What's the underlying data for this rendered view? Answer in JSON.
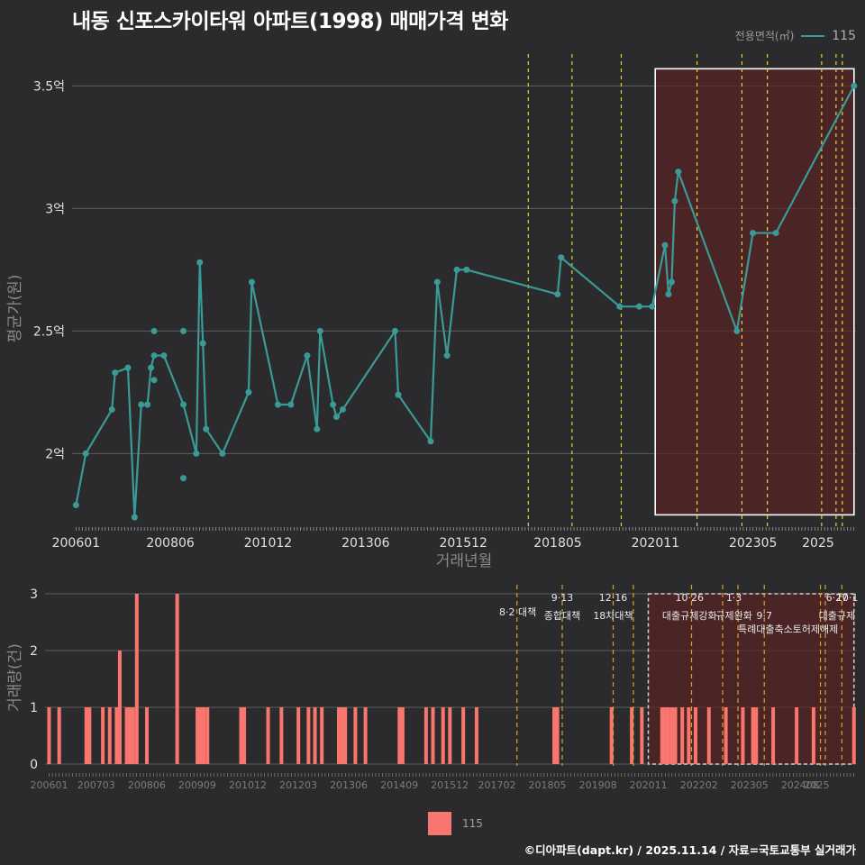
{
  "title": "내동 신포스카이타워 아파트(1998) 매매가격 변화",
  "legend_top": {
    "title": "전용면적(㎡)",
    "value": "115"
  },
  "legend_bottom": {
    "value": "115"
  },
  "footer": "©디아파트(dapt.kr) / 2025.11.14 / 자료=국토교통부 실거래가",
  "colors": {
    "line": "#3a9a95",
    "bar": "#f8766d",
    "policy": "#e8d335",
    "highlight": "#5a2324"
  },
  "chart_data": [
    {
      "type": "line",
      "name": "price",
      "xlabel": "거래년월",
      "ylabel": "평균가(원)",
      "ylim": [
        1.7,
        3.63
      ],
      "yticks": [
        {
          "v": 2.0,
          "label": "2억"
        },
        {
          "v": 2.5,
          "label": "2.5억"
        },
        {
          "v": 3.0,
          "label": "3억"
        },
        {
          "v": 3.5,
          "label": "3.5억"
        }
      ],
      "xlim": [
        2005.9,
        2025.97
      ],
      "xticks": [
        "200601",
        "200806",
        "201012",
        "201306",
        "201512",
        "201805",
        "202011",
        "202305",
        "2025"
      ],
      "policy_lines": [
        2017.58,
        2018.7,
        2019.96,
        2021.9,
        2023.05,
        2023.7,
        2025.09,
        2025.46,
        2025.62
      ],
      "highlight": {
        "from": 2020.83,
        "to": 2025.92,
        "y_from": 1.75,
        "y_to": 3.57
      },
      "series": [
        {
          "name": "115",
          "points": [
            [
              2006.0,
              1.79
            ],
            [
              2006.25,
              2.0
            ],
            [
              2006.92,
              2.18
            ],
            [
              2007.0,
              2.33
            ],
            [
              2007.33,
              2.35
            ],
            [
              2007.5,
              1.74
            ],
            [
              2007.67,
              2.2
            ],
            [
              2007.83,
              2.2
            ],
            [
              2007.92,
              2.35
            ],
            [
              2008.0,
              2.4
            ],
            [
              2008.25,
              2.4
            ],
            [
              2008.75,
              2.2
            ],
            [
              2009.08,
              2.0
            ],
            [
              2009.17,
              2.78
            ],
            [
              2009.25,
              2.45
            ],
            [
              2009.33,
              2.1
            ],
            [
              2009.75,
              2.0
            ],
            [
              2010.42,
              2.25
            ],
            [
              2010.5,
              2.7
            ],
            [
              2011.17,
              2.2
            ],
            [
              2011.5,
              2.2
            ],
            [
              2011.92,
              2.4
            ],
            [
              2012.17,
              2.1
            ],
            [
              2012.25,
              2.5
            ],
            [
              2012.58,
              2.2
            ],
            [
              2012.67,
              2.15
            ],
            [
              2012.83,
              2.18
            ],
            [
              2014.17,
              2.5
            ],
            [
              2014.25,
              2.24
            ],
            [
              2015.08,
              2.05
            ],
            [
              2015.25,
              2.7
            ],
            [
              2015.5,
              2.4
            ],
            [
              2015.75,
              2.75
            ],
            [
              2016.0,
              2.75
            ],
            [
              2018.33,
              2.65
            ],
            [
              2018.42,
              2.8
            ],
            [
              2019.92,
              2.6
            ],
            [
              2020.42,
              2.6
            ],
            [
              2020.75,
              2.6
            ],
            [
              2021.08,
              2.85
            ],
            [
              2021.17,
              2.65
            ],
            [
              2021.25,
              2.7
            ],
            [
              2021.33,
              3.03
            ],
            [
              2021.42,
              3.15
            ],
            [
              2022.92,
              2.5
            ],
            [
              2023.33,
              2.9
            ],
            [
              2023.92,
              2.9
            ],
            [
              2025.92,
              3.5
            ]
          ],
          "extra_points": [
            [
              2008.0,
              2.5
            ],
            [
              2008.0,
              2.3
            ],
            [
              2008.75,
              2.5
            ],
            [
              2008.75,
              1.9
            ]
          ]
        }
      ]
    },
    {
      "type": "bar",
      "name": "volume",
      "xlabel": "",
      "ylabel": "거래량(건)",
      "ylim": [
        0,
        3
      ],
      "yticks": [
        0,
        1,
        2,
        3
      ],
      "xlim": [
        2005.9,
        2025.97
      ],
      "xticks": [
        "200601",
        "200703",
        "200806",
        "200909",
        "201012",
        "201203",
        "201306",
        "201409",
        "201512",
        "201702",
        "201805",
        "201908",
        "202011",
        "202202",
        "202305",
        "202408",
        "2025"
      ],
      "policy_lines": [
        2017.58,
        2018.7,
        2019.96,
        2020.46,
        2021.9,
        2022.67,
        2023.05,
        2023.7,
        2025.09,
        2025.21,
        2025.62
      ],
      "highlight": {
        "from": 2020.83,
        "to": 2025.92,
        "y_from": 0,
        "y_to": 3
      },
      "annotations": [
        {
          "x": 2017.6,
          "y": 2.68,
          "text": "8·2 대책",
          "anchor": "middle"
        },
        {
          "x": 2018.7,
          "y": 2.94,
          "text": "9·13",
          "anchor": "middle"
        },
        {
          "x": 2018.7,
          "y": 2.62,
          "text": "종합대책",
          "anchor": "middle"
        },
        {
          "x": 2019.96,
          "y": 2.94,
          "text": "12·16",
          "anchor": "middle"
        },
        {
          "x": 2019.96,
          "y": 2.62,
          "text": "18차대책",
          "anchor": "middle"
        },
        {
          "x": 2021.85,
          "y": 2.94,
          "text": "10·26",
          "anchor": "middle"
        },
        {
          "x": 2021.85,
          "y": 2.62,
          "text": "대출규제강화",
          "anchor": "middle"
        },
        {
          "x": 2022.95,
          "y": 2.94,
          "text": "1·3",
          "anchor": "middle"
        },
        {
          "x": 2022.95,
          "y": 2.62,
          "text": "규제완화",
          "anchor": "middle"
        },
        {
          "x": 2023.7,
          "y": 2.62,
          "text": "9·7",
          "anchor": "middle"
        },
        {
          "x": 2023.05,
          "y": 2.38,
          "text": "특례대출축소",
          "anchor": "start"
        },
        {
          "x": 2024.4,
          "y": 2.38,
          "text": "토허제해제",
          "anchor": "start"
        },
        {
          "x": 2025.5,
          "y": 2.94,
          "text": "6·27",
          "anchor": "middle"
        },
        {
          "x": 2025.75,
          "y": 2.94,
          "text": "10·1",
          "anchor": "middle"
        },
        {
          "x": 2025.5,
          "y": 2.62,
          "text": "대출규제",
          "anchor": "middle"
        }
      ],
      "series": [
        {
          "name": "115",
          "bars": [
            [
              2006.0,
              1
            ],
            [
              2006.25,
              1
            ],
            [
              2006.92,
              1
            ],
            [
              2007.0,
              1
            ],
            [
              2007.33,
              1
            ],
            [
              2007.5,
              1
            ],
            [
              2007.67,
              1
            ],
            [
              2007.75,
              2
            ],
            [
              2007.92,
              1
            ],
            [
              2008.0,
              1
            ],
            [
              2008.08,
              1
            ],
            [
              2008.17,
              3
            ],
            [
              2008.42,
              1
            ],
            [
              2009.17,
              3
            ],
            [
              2009.67,
              1
            ],
            [
              2009.75,
              1
            ],
            [
              2009.83,
              1
            ],
            [
              2009.92,
              1
            ],
            [
              2010.75,
              1
            ],
            [
              2010.83,
              1
            ],
            [
              2011.42,
              1
            ],
            [
              2011.75,
              1
            ],
            [
              2012.17,
              1
            ],
            [
              2012.42,
              1
            ],
            [
              2012.58,
              1
            ],
            [
              2012.75,
              1
            ],
            [
              2013.17,
              1
            ],
            [
              2013.25,
              1
            ],
            [
              2013.33,
              1
            ],
            [
              2013.58,
              1
            ],
            [
              2013.83,
              1
            ],
            [
              2014.67,
              1
            ],
            [
              2014.75,
              1
            ],
            [
              2015.33,
              1
            ],
            [
              2015.5,
              1
            ],
            [
              2015.75,
              1
            ],
            [
              2015.92,
              1
            ],
            [
              2016.25,
              1
            ],
            [
              2016.58,
              1
            ],
            [
              2018.5,
              1
            ],
            [
              2018.58,
              1
            ],
            [
              2019.92,
              1
            ],
            [
              2020.42,
              1
            ],
            [
              2020.67,
              1
            ],
            [
              2021.17,
              1
            ],
            [
              2021.25,
              1
            ],
            [
              2021.33,
              1
            ],
            [
              2021.42,
              1
            ],
            [
              2021.5,
              1
            ],
            [
              2021.67,
              1
            ],
            [
              2021.83,
              1
            ],
            [
              2022.0,
              1
            ],
            [
              2022.33,
              1
            ],
            [
              2022.75,
              1
            ],
            [
              2023.17,
              1
            ],
            [
              2023.42,
              1
            ],
            [
              2023.5,
              1
            ],
            [
              2023.92,
              1
            ],
            [
              2024.5,
              1
            ],
            [
              2024.92,
              1
            ],
            [
              2025.92,
              1
            ]
          ]
        }
      ]
    }
  ]
}
